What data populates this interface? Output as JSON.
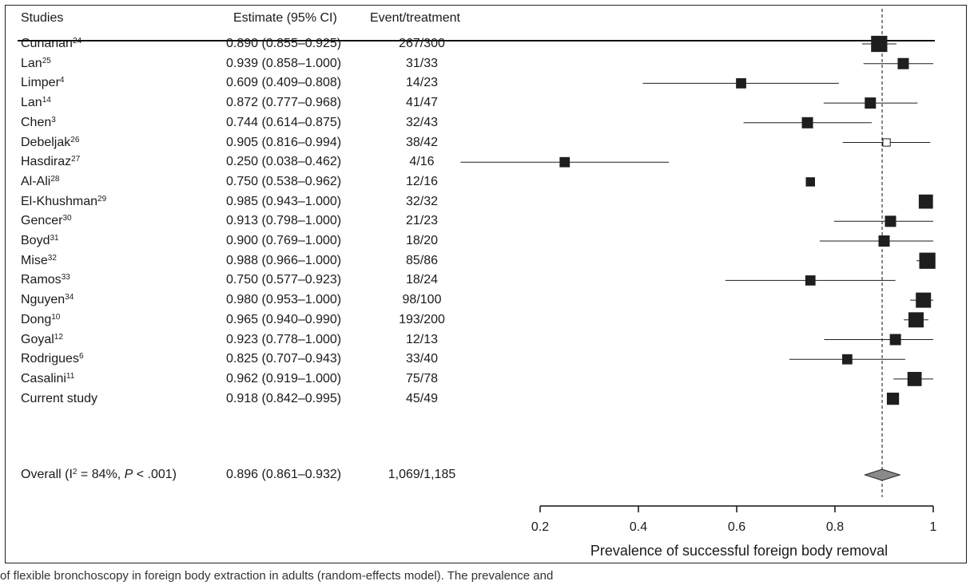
{
  "header": {
    "studies": "Studies",
    "estimate": "Estimate (95% CI)",
    "events": "Event/treatment"
  },
  "rows": [
    {
      "study": "Cunanan",
      "ref": "24",
      "estimate_text": "0.890 (0.855–0.925)",
      "events_text": "267/300"
    },
    {
      "study": "Lan",
      "ref": "25",
      "estimate_text": "0.939 (0.858–1.000)",
      "events_text": "31/33"
    },
    {
      "study": "Limper",
      "ref": "4",
      "estimate_text": "0.609 (0.409–0.808)",
      "events_text": "14/23"
    },
    {
      "study": "Lan",
      "ref": "14",
      "estimate_text": "0.872 (0.777–0.968)",
      "events_text": "41/47"
    },
    {
      "study": "Chen",
      "ref": "3",
      "estimate_text": "0.744 (0.614–0.875)",
      "events_text": "32/43"
    },
    {
      "study": "Debeljak",
      "ref": "26",
      "estimate_text": "0.905 (0.816–0.994)",
      "events_text": "38/42"
    },
    {
      "study": "Hasdiraz",
      "ref": "27",
      "estimate_text": "0.250 (0.038–0.462)",
      "events_text": "4/16"
    },
    {
      "study": "Al-Ali",
      "ref": "28",
      "estimate_text": "0.750 (0.538–0.962)",
      "events_text": "12/16"
    },
    {
      "study": "El-Khushman",
      "ref": "29",
      "estimate_text": "0.985 (0.943–1.000)",
      "events_text": "32/32"
    },
    {
      "study": "Gencer",
      "ref": "30",
      "estimate_text": "0.913 (0.798–1.000)",
      "events_text": "21/23"
    },
    {
      "study": "Boyd",
      "ref": "31",
      "estimate_text": "0.900 (0.769–1.000)",
      "events_text": "18/20"
    },
    {
      "study": "Mise",
      "ref": "32",
      "estimate_text": "0.988 (0.966–1.000)",
      "events_text": "85/86"
    },
    {
      "study": "Ramos",
      "ref": "33",
      "estimate_text": "0.750 (0.577–0.923)",
      "events_text": "18/24"
    },
    {
      "study": "Nguyen",
      "ref": "34",
      "estimate_text": "0.980 (0.953–1.000)",
      "events_text": "98/100"
    },
    {
      "study": "Dong",
      "ref": "10",
      "estimate_text": "0.965 (0.940–0.990)",
      "events_text": "193/200"
    },
    {
      "study": "Goyal",
      "ref": "12",
      "estimate_text": "0.923 (0.778–1.000)",
      "events_text": "12/13"
    },
    {
      "study": "Rodrigues",
      "ref": "6",
      "estimate_text": "0.825 (0.707–0.943)",
      "events_text": "33/40"
    },
    {
      "study": "Casalini",
      "ref": "11",
      "estimate_text": "0.962 (0.919–1.000)",
      "events_text": "75/78"
    },
    {
      "study": "Current study",
      "ref": "",
      "estimate_text": "0.918 (0.842–0.995)",
      "events_text": "45/49"
    }
  ],
  "overall": {
    "label_prefix": "Overall (I",
    "label_sup": "2",
    "label_mid": " = 84%, ",
    "label_p": "P",
    "label_suffix": " < .001)",
    "estimate_text": "0.896 (0.861–0.932)",
    "events_text": "1,069/1,185"
  },
  "caption": "of flexible bronchoscopy in foreign body extraction in adults (random-effects model). The prevalence and",
  "chart_data": {
    "type": "forest",
    "xlabel": "Prevalence of successful foreign body removal",
    "xlim": [
      0.2,
      1.0
    ],
    "xticks": [
      0.2,
      0.4,
      0.6,
      0.8,
      1
    ],
    "tick_labels": [
      "0.2",
      "0.4",
      "0.6",
      "0.8",
      "1"
    ],
    "reference_line": 0.896,
    "point_color": "#1e1e1e",
    "diamond_color": "#8a8a8a",
    "studies": [
      {
        "name": "Cunanan",
        "est": 0.89,
        "lo": 0.855,
        "hi": 0.925,
        "events": 267,
        "n": 300,
        "style": "filled"
      },
      {
        "name": "Lan",
        "est": 0.939,
        "lo": 0.858,
        "hi": 1.0,
        "events": 31,
        "n": 33,
        "style": "filled"
      },
      {
        "name": "Limper",
        "est": 0.609,
        "lo": 0.409,
        "hi": 0.808,
        "events": 14,
        "n": 23,
        "style": "filled"
      },
      {
        "name": "Lan",
        "est": 0.872,
        "lo": 0.777,
        "hi": 0.968,
        "events": 41,
        "n": 47,
        "style": "filled"
      },
      {
        "name": "Chen",
        "est": 0.744,
        "lo": 0.614,
        "hi": 0.875,
        "events": 32,
        "n": 43,
        "style": "filled"
      },
      {
        "name": "Debeljak",
        "est": 0.905,
        "lo": 0.816,
        "hi": 0.994,
        "events": 38,
        "n": 42,
        "style": "open"
      },
      {
        "name": "Hasdiraz",
        "est": 0.25,
        "lo": 0.038,
        "hi": 0.462,
        "events": 4,
        "n": 16,
        "style": "filled"
      },
      {
        "name": "Al-Ali",
        "est": 0.75,
        "lo": 0.538,
        "hi": 0.962,
        "events": 12,
        "n": 16,
        "style": "filled",
        "ci_drawn": false
      },
      {
        "name": "El-Khushman",
        "est": 0.985,
        "lo": 0.943,
        "hi": 1.0,
        "events": 32,
        "n": 32,
        "style": "filled",
        "ci_drawn": false
      },
      {
        "name": "Gencer",
        "est": 0.913,
        "lo": 0.798,
        "hi": 1.0,
        "events": 21,
        "n": 23,
        "style": "filled"
      },
      {
        "name": "Boyd",
        "est": 0.9,
        "lo": 0.769,
        "hi": 1.0,
        "events": 18,
        "n": 20,
        "style": "filled"
      },
      {
        "name": "Mise",
        "est": 0.988,
        "lo": 0.966,
        "hi": 1.0,
        "events": 85,
        "n": 86,
        "style": "filled"
      },
      {
        "name": "Ramos",
        "est": 0.75,
        "lo": 0.577,
        "hi": 0.923,
        "events": 18,
        "n": 24,
        "style": "filled"
      },
      {
        "name": "Nguyen",
        "est": 0.98,
        "lo": 0.953,
        "hi": 1.0,
        "events": 98,
        "n": 100,
        "style": "filled"
      },
      {
        "name": "Dong",
        "est": 0.965,
        "lo": 0.94,
        "hi": 0.99,
        "events": 193,
        "n": 200,
        "style": "filled"
      },
      {
        "name": "Goyal",
        "est": 0.923,
        "lo": 0.778,
        "hi": 1.0,
        "events": 12,
        "n": 13,
        "style": "filled"
      },
      {
        "name": "Rodrigues",
        "est": 0.825,
        "lo": 0.707,
        "hi": 0.943,
        "events": 33,
        "n": 40,
        "style": "filled"
      },
      {
        "name": "Casalini",
        "est": 0.962,
        "lo": 0.919,
        "hi": 1.0,
        "events": 75,
        "n": 78,
        "style": "filled"
      },
      {
        "name": "Current study",
        "est": 0.918,
        "lo": 0.842,
        "hi": 0.995,
        "events": 45,
        "n": 49,
        "style": "filled",
        "ci_drawn": false
      }
    ],
    "overall": {
      "est": 0.896,
      "lo": 0.861,
      "hi": 0.932,
      "events": 1069,
      "n": 1185,
      "i2": 84,
      "p": "< .001"
    },
    "marker_weights": [
      9,
      4,
      3,
      4,
      4,
      1,
      3,
      2,
      7,
      4,
      4,
      9,
      3,
      8,
      8,
      4,
      3,
      7,
      5
    ]
  }
}
